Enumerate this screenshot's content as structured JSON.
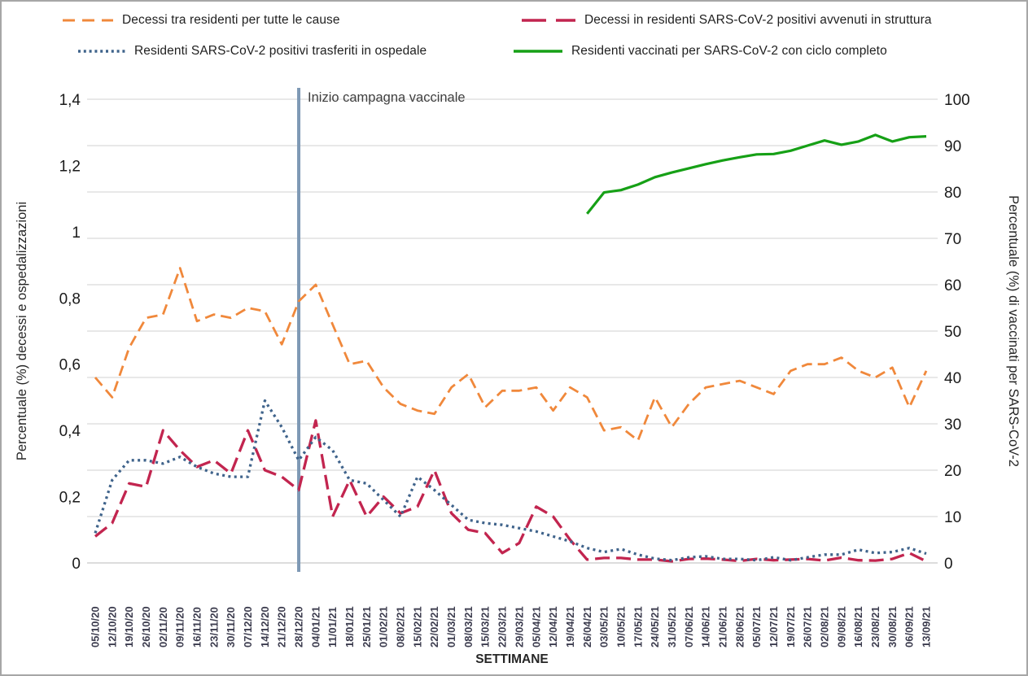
{
  "legend": {
    "items": [
      {
        "id": "decessi-tutte-cause",
        "label": "Decessi tra residenti per tutte le cause",
        "color": "#F0883B",
        "style": "long-dash"
      },
      {
        "id": "decessi-struttura",
        "label": "Decessi in residenti SARS-CoV-2 positivi avvenuti in struttura",
        "color": "#C2254F",
        "style": "dash"
      },
      {
        "id": "trasferiti-ospedale",
        "label": "Residenti SARS-CoV-2 positivi trasferiti in ospedale",
        "color": "#3F638B",
        "style": "dot"
      },
      {
        "id": "vaccinati",
        "label": "Residenti vaccinati per SARS-CoV-2 con ciclo completo",
        "color": "#16A016",
        "style": "solid"
      }
    ]
  },
  "chart_data": {
    "type": "line",
    "x": [
      "05/10/20",
      "12/10/20",
      "19/10/20",
      "26/10/20",
      "02/11/20",
      "09/11/20",
      "16/11/20",
      "23/11/20",
      "30/11/20",
      "07/12/20",
      "14/12/20",
      "21/12/20",
      "28/12/20",
      "04/01/21",
      "11/01/21",
      "18/01/21",
      "25/01/21",
      "01/02/21",
      "08/02/21",
      "15/02/21",
      "22/02/21",
      "01/03/21",
      "08/03/21",
      "15/03/21",
      "22/03/21",
      "29/03/21",
      "05/04/21",
      "12/04/21",
      "19/04/21",
      "26/04/21",
      "03/05/21",
      "10/05/21",
      "17/05/21",
      "24/05/21",
      "31/05/21",
      "07/06/21",
      "14/06/21",
      "21/06/21",
      "28/06/21",
      "05/07/21",
      "12/07/21",
      "19/07/21",
      "26/07/21",
      "02/08/21",
      "09/08/21",
      "16/08/21",
      "23/08/21",
      "30/08/21",
      "06/09/21",
      "13/09/21"
    ],
    "x_axis_label": "SETTIMANE",
    "left_axis": {
      "label": "Percentuale (%) decessi e ospedalizzazioni",
      "min": 0,
      "max": 1.4,
      "tick_step": 0.2,
      "tick_labels": [
        "0",
        "0,2",
        "0,4",
        "0,6",
        "0,8",
        "1",
        "1,2",
        "1,4"
      ]
    },
    "right_axis": {
      "label": "Percentuale (%) di vaccinati per SARS-CoV-2",
      "min": 0,
      "max": 100,
      "tick_step": 10,
      "tick_labels": [
        "0",
        "10",
        "20",
        "30",
        "40",
        "50",
        "60",
        "70",
        "80",
        "90",
        "100"
      ]
    },
    "grid": "horizontal gridlines at every 10 right-axis units",
    "annotation": {
      "text": "Inizio campagna vaccinale",
      "x_date": "28/12/20",
      "x_index": 12,
      "line_color": "#7E99B5"
    },
    "series": [
      {
        "id": "decessi-tutte-cause",
        "name": "Decessi tra residenti per tutte le cause",
        "axis": "left",
        "color": "#F0883B",
        "style": "long-dash",
        "values": [
          0.56,
          0.5,
          0.65,
          0.74,
          0.75,
          0.89,
          0.73,
          0.75,
          0.74,
          0.77,
          0.76,
          0.66,
          0.79,
          0.84,
          0.72,
          0.6,
          0.61,
          0.53,
          0.48,
          0.46,
          0.45,
          0.53,
          0.57,
          0.47,
          0.52,
          0.52,
          0.53,
          0.46,
          0.53,
          0.5,
          0.4,
          0.41,
          0.37,
          0.5,
          0.41,
          0.48,
          0.53,
          0.54,
          0.55,
          0.53,
          0.51,
          0.58,
          0.6,
          0.6,
          0.62,
          0.58,
          0.56,
          0.59,
          0.47,
          0.58
        ]
      },
      {
        "id": "decessi-struttura",
        "name": "Decessi in residenti SARS-CoV-2 positivi avvenuti in struttura",
        "axis": "left",
        "color": "#C2254F",
        "style": "dash",
        "values": [
          0.08,
          0.12,
          0.24,
          0.23,
          0.4,
          0.34,
          0.29,
          0.31,
          0.27,
          0.4,
          0.28,
          0.26,
          0.22,
          0.43,
          0.14,
          0.25,
          0.14,
          0.2,
          0.15,
          0.17,
          0.28,
          0.15,
          0.1,
          0.09,
          0.03,
          0.06,
          0.17,
          0.14,
          0.07,
          0.01,
          0.015,
          0.015,
          0.01,
          0.01,
          0.005,
          0.012,
          0.013,
          0.01,
          0.006,
          0.012,
          0.008,
          0.01,
          0.012,
          0.007,
          0.016,
          0.008,
          0.007,
          0.012,
          0.03,
          0.005
        ]
      },
      {
        "id": "trasferiti-ospedale",
        "name": "Residenti SARS-CoV-2 positivi trasferiti in ospedale",
        "axis": "left",
        "color": "#3F638B",
        "style": "dot",
        "values": [
          0.09,
          0.25,
          0.31,
          0.31,
          0.3,
          0.32,
          0.29,
          0.27,
          0.26,
          0.26,
          0.49,
          0.41,
          0.31,
          0.38,
          0.34,
          0.25,
          0.24,
          0.19,
          0.14,
          0.26,
          0.22,
          0.175,
          0.13,
          0.12,
          0.115,
          0.105,
          0.095,
          0.08,
          0.065,
          0.045,
          0.033,
          0.042,
          0.025,
          0.013,
          0.008,
          0.017,
          0.02,
          0.012,
          0.012,
          0.008,
          0.017,
          0.008,
          0.017,
          0.025,
          0.025,
          0.04,
          0.03,
          0.033,
          0.045,
          0.028
        ]
      },
      {
        "id": "vaccinati",
        "name": "Residenti vaccinati per SARS-CoV-2 con ciclo completo",
        "axis": "right",
        "color": "#16A016",
        "style": "solid",
        "values": [
          null,
          null,
          null,
          null,
          null,
          null,
          null,
          null,
          null,
          null,
          null,
          null,
          null,
          null,
          null,
          null,
          null,
          null,
          null,
          null,
          null,
          null,
          null,
          null,
          null,
          null,
          null,
          null,
          null,
          75.3,
          79.9,
          80.4,
          81.6,
          83.2,
          84.2,
          85.1,
          86,
          86.8,
          87.5,
          88.1,
          88.2,
          88.9,
          90,
          91.1,
          90.2,
          90.9,
          92.3,
          90.9,
          91.8,
          92
        ]
      }
    ]
  }
}
